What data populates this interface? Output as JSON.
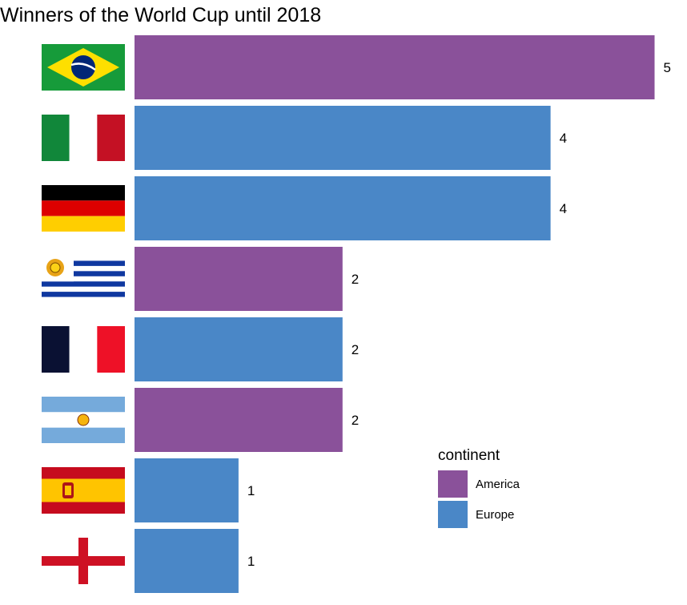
{
  "chart_data": {
    "type": "bar",
    "orientation": "horizontal",
    "title": "Winners of the World Cup until 2018",
    "xlabel": "",
    "ylabel": "",
    "xlim": [
      0,
      5.15
    ],
    "grid": false,
    "categories": [
      "Brazil",
      "Italy",
      "Germany",
      "Uruguay",
      "France",
      "Argentina",
      "Spain",
      "England"
    ],
    "values": [
      5,
      4,
      4,
      2,
      2,
      2,
      1,
      1
    ],
    "groups": [
      "America",
      "Europe",
      "Europe",
      "America",
      "Europe",
      "America",
      "Europe",
      "Europe"
    ],
    "category_icons": [
      "flag-brazil",
      "flag-italy",
      "flag-germany",
      "flag-uruguay",
      "flag-france",
      "flag-argentina",
      "flag-spain",
      "flag-england"
    ],
    "data_labels": [
      "5",
      "4",
      "4",
      "2",
      "2",
      "2",
      "1",
      "1"
    ],
    "legend": {
      "title": "continent",
      "position": "bottom-right",
      "entries": [
        {
          "name": "America",
          "color": "#8A519A"
        },
        {
          "name": "Europe",
          "color": "#4A87C7"
        }
      ]
    }
  }
}
